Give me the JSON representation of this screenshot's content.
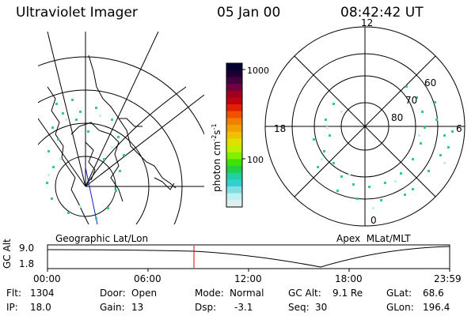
{
  "header": {
    "instrument": "Ultraviolet Imager",
    "date": "05 Jan 00",
    "time": "08:42:42 UT"
  },
  "colorbar": {
    "label": "photon cm",
    "label_sup1": "-2",
    "label_mid": "s",
    "label_sup2": "-1",
    "ticks": [
      "1000",
      "100"
    ],
    "colors": [
      "#000030",
      "#1a0030",
      "#450040",
      "#700040",
      "#a00020",
      "#c00010",
      "#e02000",
      "#f05000",
      "#f08000",
      "#f0a000",
      "#f0c000",
      "#e0e000",
      "#c0f000",
      "#80f000",
      "#40e000",
      "#20d040",
      "#20d0a0",
      "#30d0d0",
      "#80e0e0",
      "#c0f0f0",
      "#e0f0f0"
    ]
  },
  "left_map": {
    "caption": "Geographic Lat/Lon"
  },
  "right_map": {
    "caption": "Apex  MLat/MLT",
    "mlt_labels": {
      "top": "12",
      "left": "18",
      "right": "6",
      "bottom": "0"
    },
    "mlat_labels": [
      "60",
      "70",
      "80"
    ]
  },
  "timeline": {
    "ylabel": "GC Alt",
    "ytick_top": "9.0",
    "ytick_bottom": "1.8",
    "xticks": [
      "00:00",
      "06:00",
      "12:00",
      "18:00",
      "23:59"
    ],
    "current_marker_colour": "#e00000"
  },
  "status": {
    "flt_label": "Flt:",
    "flt_value": "1304",
    "ip_label": "IP:",
    "ip_value": "18.0",
    "door_label": "Door:",
    "door_value": "Open",
    "gain_label": "Gain:",
    "gain_value": "13",
    "mode_label": "Mode:",
    "mode_value": "Normal",
    "dsp_label": "Dsp:",
    "dsp_value": "-3.1",
    "gcalt_label": "GC Alt:",
    "gcalt_value": "9.1 Re",
    "seq_label": "Seq:",
    "seq_value": "30",
    "glat_label": "GLat:",
    "glat_value": "68.6",
    "glon_label": "GLon:",
    "glon_value": "196.4"
  }
}
